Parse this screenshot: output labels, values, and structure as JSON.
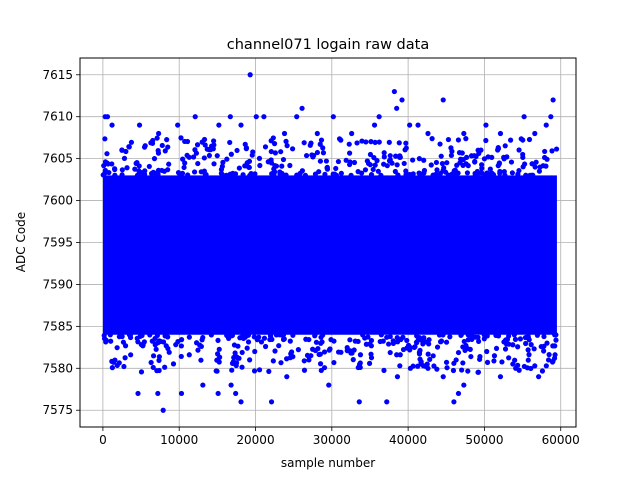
{
  "chart_data": {
    "type": "scatter",
    "title": "channel071 logain raw data",
    "xlabel": "sample number",
    "ylabel": "ADC Code",
    "xlim": [
      -3000,
      62000
    ],
    "ylim": [
      7573,
      7617
    ],
    "x_ticks": [
      0,
      10000,
      20000,
      30000,
      40000,
      50000,
      60000
    ],
    "x_tick_labels": [
      "0",
      "10000",
      "20000",
      "30000",
      "40000",
      "50000",
      "60000"
    ],
    "y_ticks": [
      7575,
      7580,
      7585,
      7590,
      7595,
      7600,
      7605,
      7610,
      7615
    ],
    "y_tick_labels": [
      "7575",
      "7580",
      "7585",
      "7590",
      "7595",
      "7600",
      "7605",
      "7610",
      "7615"
    ],
    "grid": true,
    "legend": "none",
    "marker_color": "#0000ff",
    "dense_band": {
      "description": "dense cloud of samples",
      "x_range": [
        0,
        59500
      ],
      "y_range": [
        7584,
        7603
      ]
    },
    "series": [
      {
        "points": [
          [
            300,
            7610
          ],
          [
            600,
            7610
          ],
          [
            1200,
            7609
          ],
          [
            2500,
            7606
          ],
          [
            4800,
            7609
          ],
          [
            7300,
            7608
          ],
          [
            9800,
            7609
          ],
          [
            12100,
            7610
          ],
          [
            15200,
            7609
          ],
          [
            16700,
            7610
          ],
          [
            18100,
            7609
          ],
          [
            19300,
            7615
          ],
          [
            20100,
            7610
          ],
          [
            21100,
            7610
          ],
          [
            23800,
            7608
          ],
          [
            25400,
            7610
          ],
          [
            26100,
            7611
          ],
          [
            28100,
            7608
          ],
          [
            30200,
            7610
          ],
          [
            32600,
            7608
          ],
          [
            35600,
            7609
          ],
          [
            36200,
            7610
          ],
          [
            38200,
            7613
          ],
          [
            38500,
            7611
          ],
          [
            39200,
            7612
          ],
          [
            40200,
            7609
          ],
          [
            41300,
            7609
          ],
          [
            42600,
            7608
          ],
          [
            44600,
            7612
          ],
          [
            47300,
            7608
          ],
          [
            50200,
            7609
          ],
          [
            52100,
            7608
          ],
          [
            55200,
            7610
          ],
          [
            56600,
            7608
          ],
          [
            58100,
            7609
          ],
          [
            58700,
            7610
          ],
          [
            59000,
            7612
          ],
          [
            7900,
            7575
          ],
          [
            7200,
            7577
          ],
          [
            4600,
            7577
          ],
          [
            10300,
            7577
          ],
          [
            13100,
            7578
          ],
          [
            15100,
            7577
          ],
          [
            16800,
            7578
          ],
          [
            17400,
            7577
          ],
          [
            18100,
            7576
          ],
          [
            19900,
            7582
          ],
          [
            22100,
            7576
          ],
          [
            24100,
            7579
          ],
          [
            27000,
            7581
          ],
          [
            29600,
            7578
          ],
          [
            33600,
            7576
          ],
          [
            37200,
            7576
          ],
          [
            38600,
            7579
          ],
          [
            40300,
            7580
          ],
          [
            42600,
            7580
          ],
          [
            44600,
            7579
          ],
          [
            46000,
            7576
          ],
          [
            46600,
            7577
          ],
          [
            47300,
            7578
          ],
          [
            50300,
            7582
          ],
          [
            52100,
            7579
          ],
          [
            54100,
            7580
          ],
          [
            57100,
            7579
          ],
          [
            58200,
            7583
          ],
          [
            59200,
            7584
          ]
        ]
      }
    ]
  }
}
